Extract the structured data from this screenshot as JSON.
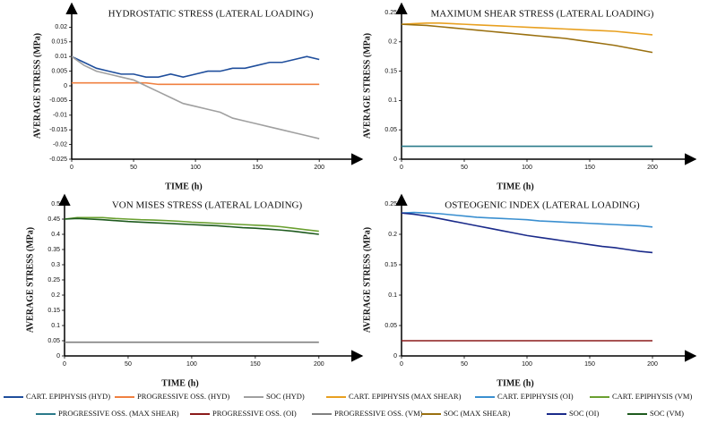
{
  "chart_data": [
    {
      "type": "line",
      "title": "HYDROSTATIC STRESS (LATERAL LOADING)",
      "xlabel": "TIME (h)",
      "ylabel": "AVERAGE STRESS (MPa)",
      "x": [
        0,
        10,
        20,
        30,
        40,
        50,
        60,
        70,
        80,
        90,
        100,
        110,
        120,
        130,
        140,
        150,
        160,
        170,
        180,
        190,
        200
      ],
      "xlim": [
        0,
        210
      ],
      "xticks": [
        0,
        50,
        100,
        150,
        200
      ],
      "ylim": [
        -0.025,
        0.025
      ],
      "yticks": [
        -0.025,
        -0.02,
        -0.015,
        -0.01,
        -0.005,
        0,
        0.005,
        0.01,
        0.015,
        0.02
      ],
      "series": [
        {
          "name": "CART. EPIPHYSIS (HYD)",
          "color": "#1f4e9c",
          "values": [
            0.01,
            0.008,
            0.006,
            0.005,
            0.004,
            0.004,
            0.003,
            0.003,
            0.004,
            0.003,
            0.004,
            0.005,
            0.005,
            0.006,
            0.006,
            0.007,
            0.008,
            0.008,
            0.009,
            0.01,
            0.009
          ]
        },
        {
          "name": "PROGRESSIVE OSS. (HYD)",
          "color": "#f08040",
          "values": [
            0.001,
            0.001,
            0.001,
            0.001,
            0.001,
            0.001,
            0.001,
            0.0005,
            0.0005,
            0.0005,
            0.0005,
            0.0005,
            0.0005,
            0.0005,
            0.0005,
            0.0005,
            0.0005,
            0.0005,
            0.0005,
            0.0005,
            0.0005
          ]
        },
        {
          "name": "SOC (HYD)",
          "color": "#a0a0a0",
          "values": [
            0.01,
            0.007,
            0.005,
            0.004,
            0.003,
            0.002,
            0,
            -0.002,
            -0.004,
            -0.006,
            -0.007,
            -0.008,
            -0.009,
            -0.011,
            -0.012,
            -0.013,
            -0.014,
            -0.015,
            -0.016,
            -0.017,
            -0.018
          ]
        }
      ]
    },
    {
      "type": "line",
      "title": "MAXIMUM SHEAR STRESS (LATERAL LOADING)",
      "xlabel": "TIME (h)",
      "ylabel": "AVERAGE STRESS (MPa)",
      "x": [
        0,
        10,
        20,
        30,
        40,
        50,
        60,
        70,
        80,
        90,
        100,
        110,
        120,
        130,
        140,
        150,
        160,
        170,
        180,
        190,
        200
      ],
      "xlim": [
        0,
        210
      ],
      "xticks": [
        0,
        50,
        100,
        150,
        200
      ],
      "ylim": [
        0,
        0.25
      ],
      "yticks": [
        0,
        0.05,
        0.1,
        0.15,
        0.2,
        0.25
      ],
      "series": [
        {
          "name": "CART. EPIPHYSIS (MAX SHEAR)",
          "color": "#e8a020",
          "values": [
            0.23,
            0.231,
            0.232,
            0.232,
            0.231,
            0.23,
            0.229,
            0.228,
            0.227,
            0.226,
            0.225,
            0.224,
            0.223,
            0.222,
            0.221,
            0.22,
            0.219,
            0.218,
            0.216,
            0.214,
            0.212
          ]
        },
        {
          "name": "PROGRESSIVE OSS. (MAX SHEAR)",
          "color": "#2a7a8a",
          "values": [
            0.022,
            0.022,
            0.022,
            0.022,
            0.022,
            0.022,
            0.022,
            0.022,
            0.022,
            0.022,
            0.022,
            0.022,
            0.022,
            0.022,
            0.022,
            0.022,
            0.022,
            0.022,
            0.022,
            0.022,
            0.022
          ]
        },
        {
          "name": "SOC (MAX SHEAR)",
          "color": "#9a7010",
          "values": [
            0.23,
            0.229,
            0.228,
            0.226,
            0.224,
            0.222,
            0.22,
            0.218,
            0.216,
            0.214,
            0.212,
            0.21,
            0.208,
            0.206,
            0.203,
            0.2,
            0.197,
            0.194,
            0.19,
            0.186,
            0.182
          ]
        }
      ]
    },
    {
      "type": "line",
      "title": "VON MISES STRESS (LATERAL LOADING)",
      "xlabel": "TIME (h)",
      "ylabel": "AVERAGE STRESS (MPa)",
      "x": [
        0,
        10,
        20,
        30,
        40,
        50,
        60,
        70,
        80,
        90,
        100,
        110,
        120,
        130,
        140,
        150,
        160,
        170,
        180,
        190,
        200
      ],
      "xlim": [
        0,
        210
      ],
      "xticks": [
        0,
        50,
        100,
        150,
        200
      ],
      "ylim": [
        0,
        0.5
      ],
      "yticks": [
        0,
        0.05,
        0.1,
        0.15,
        0.2,
        0.25,
        0.3,
        0.35,
        0.4,
        0.45,
        0.5
      ],
      "series": [
        {
          "name": "CART. EPIPHYSIS (VM)",
          "color": "#6aa030",
          "values": [
            0.45,
            0.455,
            0.455,
            0.455,
            0.452,
            0.45,
            0.448,
            0.447,
            0.445,
            0.443,
            0.44,
            0.438,
            0.436,
            0.434,
            0.432,
            0.43,
            0.428,
            0.425,
            0.42,
            0.415,
            0.41
          ]
        },
        {
          "name": "PROGRESSIVE OSS. (VM)",
          "color": "#808080",
          "values": [
            0.045,
            0.045,
            0.045,
            0.045,
            0.045,
            0.045,
            0.045,
            0.045,
            0.045,
            0.045,
            0.045,
            0.045,
            0.045,
            0.045,
            0.045,
            0.045,
            0.045,
            0.045,
            0.045,
            0.045,
            0.045
          ]
        },
        {
          "name": "SOC (VM)",
          "color": "#1e5a1e",
          "values": [
            0.45,
            0.452,
            0.45,
            0.448,
            0.445,
            0.442,
            0.44,
            0.438,
            0.436,
            0.434,
            0.432,
            0.43,
            0.428,
            0.425,
            0.422,
            0.42,
            0.417,
            0.414,
            0.41,
            0.405,
            0.4
          ]
        }
      ]
    },
    {
      "type": "line",
      "title": "OSTEOGENIC INDEX (LATERAL LOADING)",
      "xlabel": "TIME (h)",
      "ylabel": "AVERAGE STRESS (MPa)",
      "x": [
        0,
        10,
        20,
        30,
        40,
        50,
        60,
        70,
        80,
        90,
        100,
        110,
        120,
        130,
        140,
        150,
        160,
        170,
        180,
        190,
        200
      ],
      "xlim": [
        0,
        210
      ],
      "xticks": [
        0,
        50,
        100,
        150,
        200
      ],
      "ylim": [
        0,
        0.25
      ],
      "yticks": [
        0,
        0.05,
        0.1,
        0.15,
        0.2,
        0.25
      ],
      "series": [
        {
          "name": "CART. EPIPHYSIS (OI)",
          "color": "#3a8fd0",
          "values": [
            0.235,
            0.236,
            0.235,
            0.234,
            0.232,
            0.23,
            0.228,
            0.227,
            0.226,
            0.225,
            0.224,
            0.222,
            0.221,
            0.22,
            0.219,
            0.218,
            0.217,
            0.216,
            0.215,
            0.214,
            0.212
          ]
        },
        {
          "name": "PROGRESSIVE OSS. (OI)",
          "color": "#8b1a1a",
          "values": [
            0.025,
            0.025,
            0.025,
            0.025,
            0.025,
            0.025,
            0.025,
            0.025,
            0.025,
            0.025,
            0.025,
            0.025,
            0.025,
            0.025,
            0.025,
            0.025,
            0.025,
            0.025,
            0.025,
            0.025,
            0.025
          ]
        },
        {
          "name": "SOC (OI)",
          "color": "#1a2a8a",
          "values": [
            0.235,
            0.233,
            0.23,
            0.226,
            0.222,
            0.218,
            0.214,
            0.21,
            0.206,
            0.202,
            0.198,
            0.195,
            0.192,
            0.189,
            0.186,
            0.183,
            0.18,
            0.178,
            0.175,
            0.172,
            0.17
          ]
        }
      ]
    }
  ]
}
